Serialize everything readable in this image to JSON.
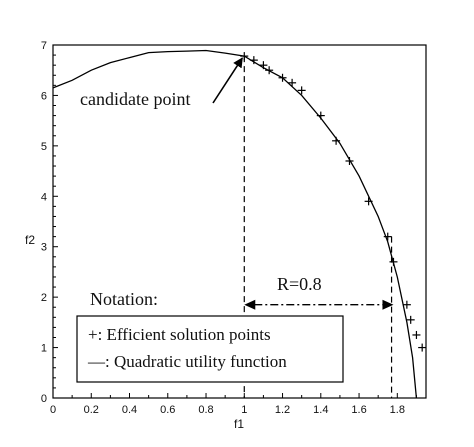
{
  "chart_data": {
    "type": "scatter",
    "xlabel": "f1",
    "ylabel": "f2",
    "xlim": [
      0,
      1.95
    ],
    "ylim": [
      0,
      7
    ],
    "xticks": [
      "0",
      "0.2",
      "0.4",
      "0.6",
      "0.8",
      "1",
      "1.2",
      "1.4",
      "1.6",
      "1.8"
    ],
    "xtick_values": [
      0,
      0.2,
      0.4,
      0.6,
      0.8,
      1.0,
      1.2,
      1.4,
      1.6,
      1.8
    ],
    "yticks": [
      "0",
      "1",
      "2",
      "3",
      "4",
      "5",
      "6",
      "7"
    ],
    "ytick_values": [
      0,
      1,
      2,
      3,
      4,
      5,
      6,
      7
    ],
    "grid": false,
    "series": [
      {
        "style": "line",
        "x": [
          0.0,
          0.1,
          0.2,
          0.3,
          0.4,
          0.5,
          0.6,
          0.7,
          0.8,
          0.9,
          1.0,
          1.1,
          1.2,
          1.3,
          1.4,
          1.5,
          1.6,
          1.7,
          1.75,
          1.8,
          1.85,
          1.88,
          1.9
        ],
        "y": [
          6.15,
          6.3,
          6.5,
          6.65,
          6.75,
          6.85,
          6.87,
          6.88,
          6.89,
          6.84,
          6.78,
          6.55,
          6.35,
          6.0,
          5.55,
          5.05,
          4.4,
          3.6,
          3.1,
          2.4,
          1.5,
          0.8,
          0.0
        ]
      },
      {
        "style": "marker",
        "marker": "+",
        "x": [
          1.0,
          1.05,
          1.1,
          1.13,
          1.2,
          1.25,
          1.3,
          1.4,
          1.48,
          1.55,
          1.65,
          1.75,
          1.78,
          1.85,
          1.87,
          1.9,
          1.93
        ],
        "y": [
          6.78,
          6.7,
          6.6,
          6.5,
          6.35,
          6.25,
          6.1,
          5.6,
          5.1,
          4.7,
          3.9,
          3.2,
          2.7,
          1.85,
          1.55,
          1.25,
          1.0
        ]
      }
    ],
    "annotations": {
      "candidate_label": "candidate point",
      "candidate_x": 1.0,
      "candidate_y": 6.78,
      "r_label": "R=0.8",
      "r_start_x": 1.0,
      "r_end_x": 1.78,
      "r_y": 1.85,
      "right_dashed_x": 1.77,
      "right_dashed_top_y": 3.2
    },
    "legend": {
      "title": "Notation:",
      "entries": [
        "+: Efficient solution points",
        "—: Quadratic utility function"
      ]
    }
  }
}
